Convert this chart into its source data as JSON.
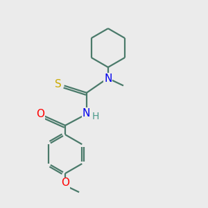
{
  "background_color": "#ebebeb",
  "bond_color": "#4a7a6a",
  "atom_colors": {
    "N": "#0000ee",
    "O": "#ff0000",
    "S": "#ccaa00",
    "H": "#4a9a8a",
    "C": "#4a7a6a"
  },
  "line_width": 1.6,
  "font_size": 9,
  "figsize": [
    3.0,
    3.0
  ],
  "dpi": 100,
  "xlim": [
    0,
    10
  ],
  "ylim": [
    0,
    10
  ]
}
